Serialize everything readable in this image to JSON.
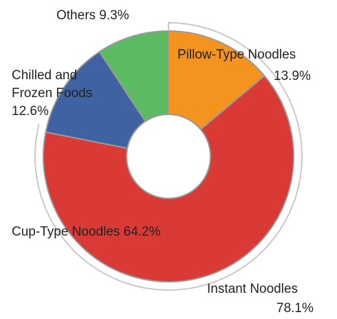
{
  "chart_data": {
    "type": "pie",
    "variant": "donut",
    "slices": [
      {
        "label": "Pillow-Type Noodles",
        "value": 13.9,
        "display": "13.9%",
        "color": "#F5931F"
      },
      {
        "label": "Cup-Type Noodles",
        "value": 64.2,
        "display": "64.2%",
        "color": "#D93A36"
      },
      {
        "label": "Chilled and Frozen Foods",
        "value": 12.6,
        "display": "12.6%",
        "color": "#3E62A2"
      },
      {
        "label": "Others",
        "value": 9.3,
        "display": "9.3%",
        "color": "#5CBA62"
      }
    ],
    "group": {
      "label": "Instant Noodles",
      "value": 78.1,
      "display": "78.1%"
    },
    "labels": {
      "others": "Others 9.3%",
      "pillow_line1": "Pillow-Type Noodles",
      "pillow_line2": "13.9%",
      "chilled_line1": "Chilled and",
      "chilled_line2": "Frozen Foods",
      "chilled_line3": "12.6%",
      "cup": "Cup-Type Noodles 64.2%",
      "instant_line1": "Instant Noodles",
      "instant_line2": "78.1%"
    }
  }
}
